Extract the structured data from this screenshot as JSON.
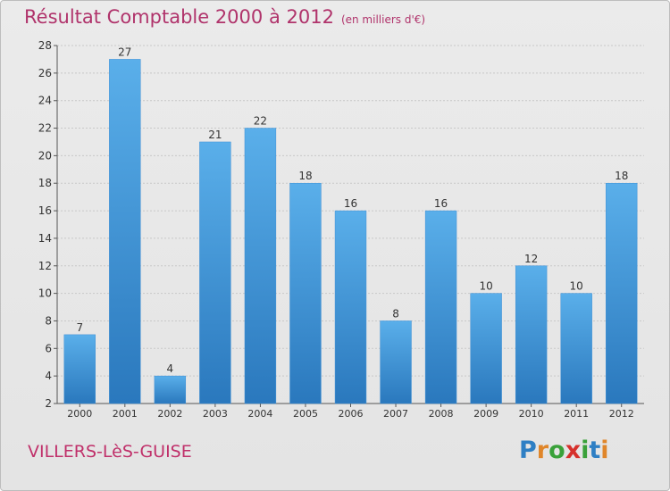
{
  "header": {
    "title": "Résultat Comptable 2000 à 2012",
    "subtitle": "(en milliers d'€)"
  },
  "footer": {
    "city": "VILLERS-LèS-GUISE",
    "logo_letters": [
      "P",
      "r",
      "o",
      "x",
      "i",
      "t",
      "i"
    ],
    "logo_colors": [
      "#2e7fc4",
      "#e0862a",
      "#3aa13a",
      "#d6312c",
      "#3aa13a",
      "#2e7fc4",
      "#e0862a"
    ]
  },
  "chart_data": {
    "type": "bar",
    "title": "Résultat Comptable 2000 à 2012",
    "subtitle": "(en milliers d'€)",
    "categories": [
      "2000",
      "2001",
      "2002",
      "2003",
      "2004",
      "2005",
      "2006",
      "2007",
      "2008",
      "2009",
      "2010",
      "2011",
      "2012"
    ],
    "values": [
      7,
      27,
      4,
      21,
      22,
      18,
      16,
      8,
      16,
      10,
      12,
      10,
      18
    ],
    "ylim": [
      2,
      28
    ],
    "yticks": [
      2,
      4,
      6,
      8,
      10,
      12,
      14,
      16,
      18,
      20,
      22,
      24,
      26,
      28
    ],
    "grid": true,
    "bar_color": "#4a9fe0",
    "bar_color_dark": "#2f7fc5"
  }
}
